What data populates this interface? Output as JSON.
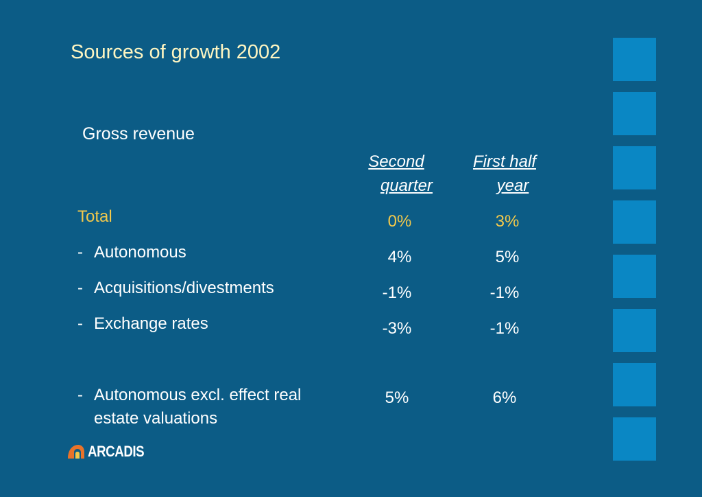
{
  "slide": {
    "title": "Sources of growth 2002",
    "subtitle": "Gross revenue"
  },
  "columns": [
    {
      "line1": "Second",
      "line2": "quarter"
    },
    {
      "line1": "First half",
      "line2": "year"
    }
  ],
  "rows": [
    {
      "dash": "",
      "label": "Total",
      "label2": "",
      "q2": "0%",
      "h1": "3%",
      "highlight": true
    },
    {
      "dash": "-",
      "label": "Autonomous",
      "label2": "",
      "q2": "4%",
      "h1": "5%"
    },
    {
      "dash": "-",
      "label": "Acquisitions/divestments",
      "label2": "",
      "q2": "-1%",
      "h1": "-1%"
    },
    {
      "dash": "-",
      "label": "Exchange rates",
      "label2": "",
      "q2": "-3%",
      "h1": "-1%"
    },
    {
      "dash": "-",
      "label": "Autonomous excl. effect real",
      "label2": "estate valuations",
      "q2": "5%",
      "h1": "6%"
    }
  ],
  "logo": {
    "text": "ARCADIS",
    "icon": "arcadis-logo-icon"
  },
  "colors": {
    "background": "#0c5c86",
    "title": "#fff6c2",
    "highlight": "#f2c84b",
    "squares": "#0a87c4"
  }
}
